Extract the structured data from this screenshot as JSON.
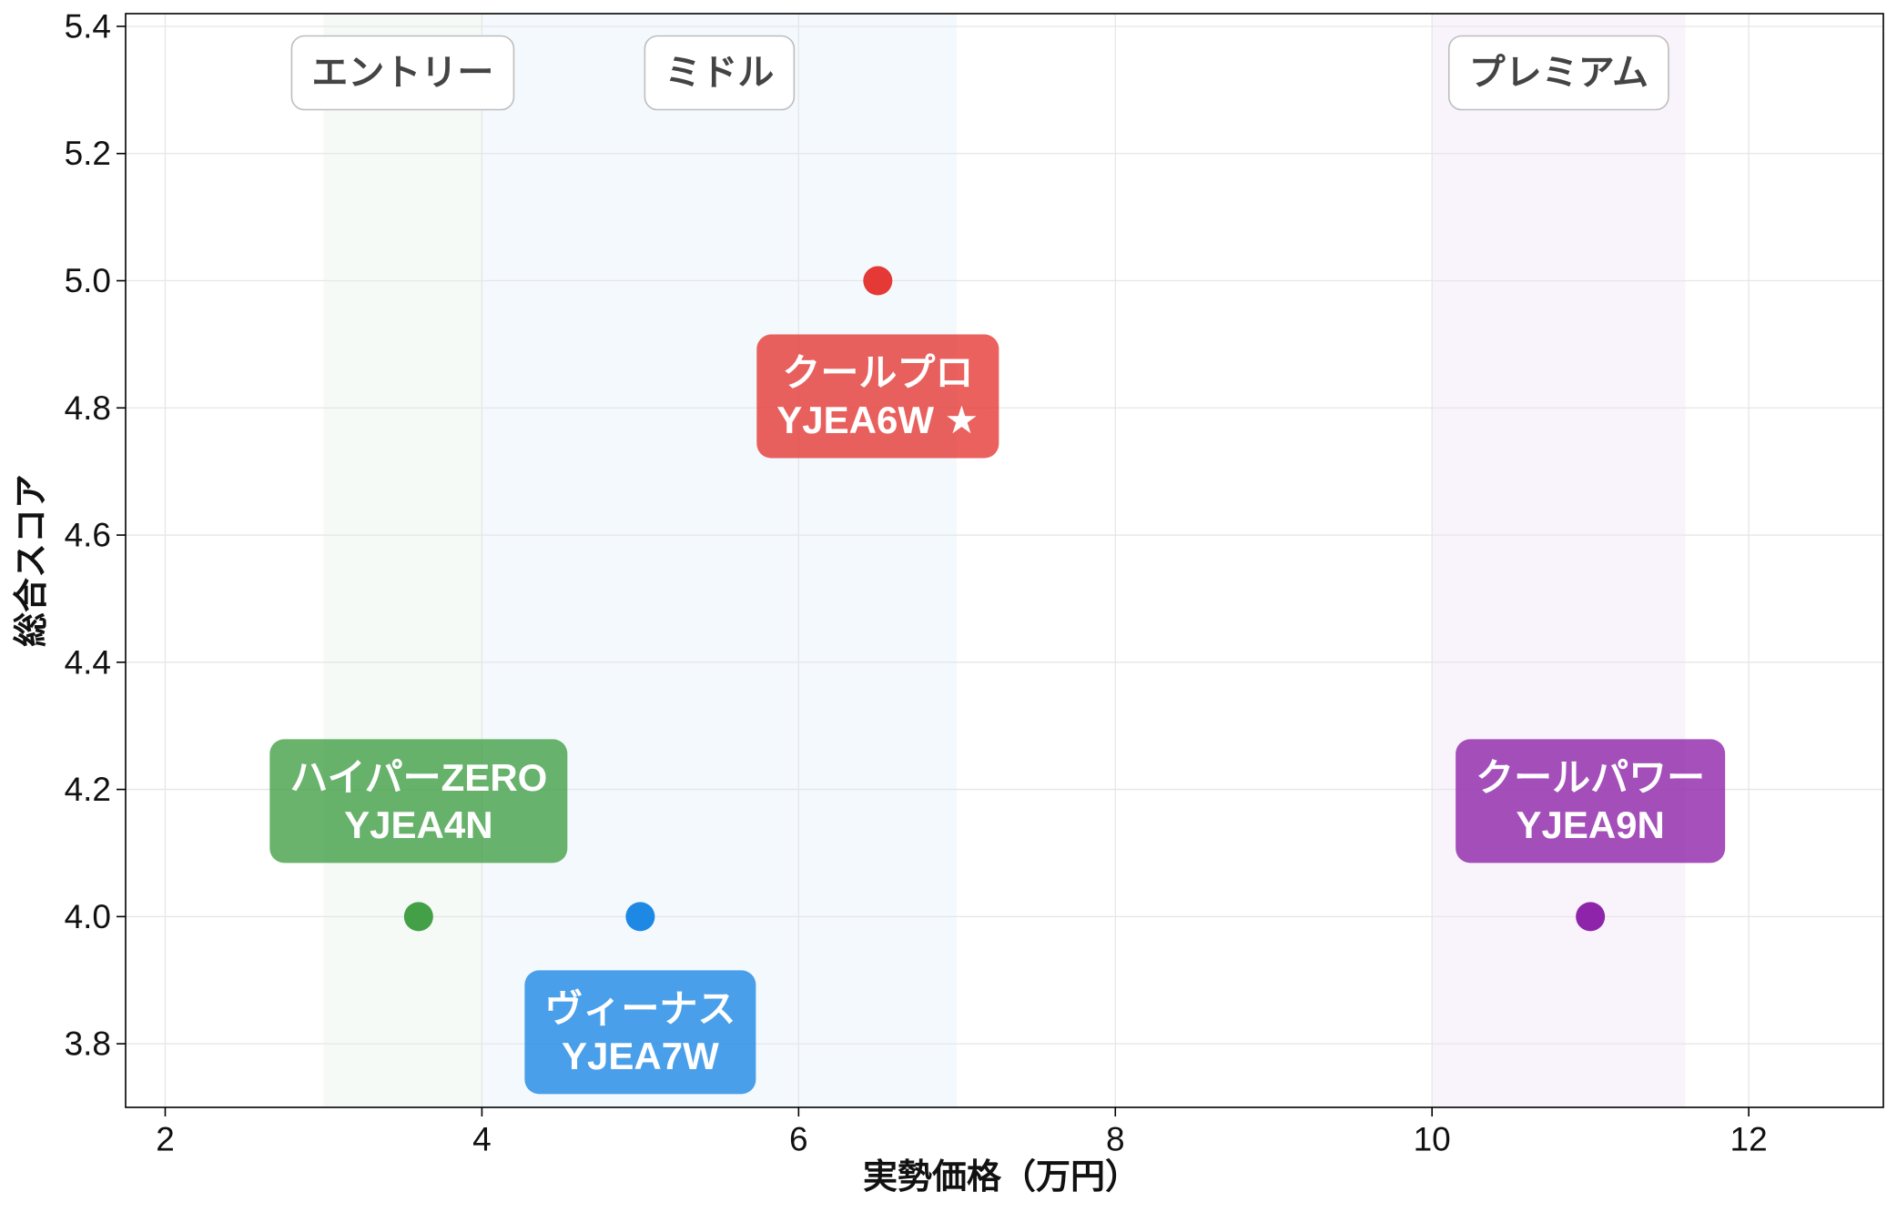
{
  "chart_data": {
    "type": "scatter",
    "xlabel": "実勢価格（万円）",
    "ylabel": "総合スコア",
    "xlim": [
      1.75,
      12.85
    ],
    "ylim": [
      3.7,
      5.42
    ],
    "xticks": [
      2,
      4,
      6,
      8,
      10,
      12
    ],
    "xtick_labels": [
      "2",
      "4",
      "6",
      "8",
      "10",
      "12"
    ],
    "yticks": [
      3.8,
      4.0,
      4.2,
      4.4,
      4.6,
      4.8,
      5.0,
      5.2,
      5.4
    ],
    "ytick_labels": [
      "3.8",
      "4.0",
      "4.2",
      "4.4",
      "4.6",
      "4.8",
      "5.0",
      "5.2",
      "5.4"
    ],
    "grid": true,
    "points": [
      {
        "name": "ハイパーZERO",
        "model": "YJEA4N",
        "x": 3.6,
        "y": 4.0,
        "color": "#43a047"
      },
      {
        "name": "ヴィーナス",
        "model": "YJEA7W",
        "x": 5.0,
        "y": 4.0,
        "color": "#1e88e5"
      },
      {
        "name": "クールプロ",
        "model": "YJEA6W ★",
        "x": 6.5,
        "y": 5.0,
        "color": "#e53935"
      },
      {
        "name": "クールパワー",
        "model": "YJEA9N",
        "x": 11.0,
        "y": 4.0,
        "color": "#8e24aa"
      }
    ],
    "bands": [
      {
        "label": "エントリー",
        "x_range": [
          3,
          4
        ],
        "color": "#43a047"
      },
      {
        "label": "ミドル",
        "x_range": [
          4,
          7
        ],
        "color": "#1e88e5"
      },
      {
        "label": "プレミアム",
        "x_range": [
          10,
          11.6
        ],
        "color": "#8e24aa"
      }
    ]
  }
}
